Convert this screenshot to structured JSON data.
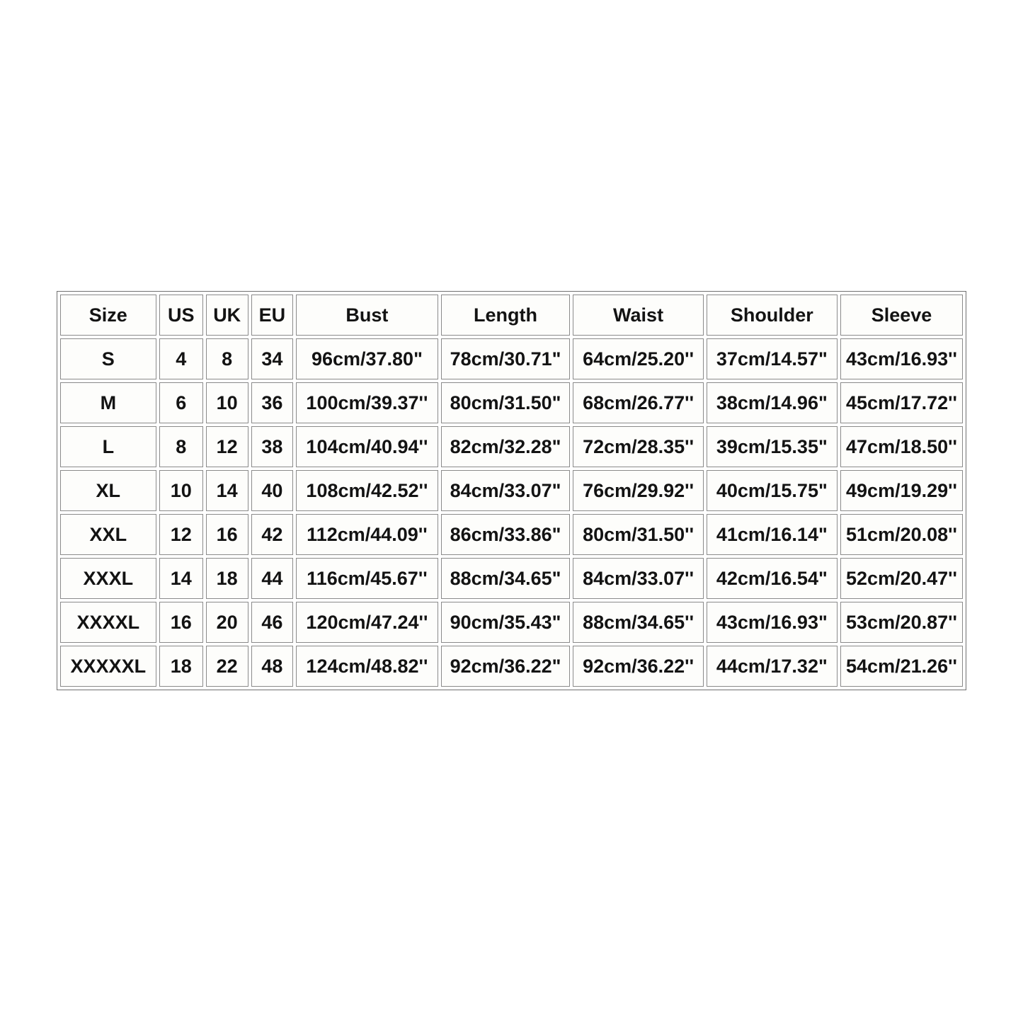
{
  "chart_data": {
    "type": "table",
    "columns": [
      "Size",
      "US",
      "UK",
      "EU",
      "Bust",
      "Length",
      "Waist",
      "Shoulder",
      "Sleeve"
    ],
    "rows": [
      [
        "S",
        "4",
        "8",
        "34",
        "96cm/37.80\"",
        "78cm/30.71\"",
        "64cm/25.20''",
        "37cm/14.57\"",
        "43cm/16.93''"
      ],
      [
        "M",
        "6",
        "10",
        "36",
        "100cm/39.37''",
        "80cm/31.50\"",
        "68cm/26.77''",
        "38cm/14.96\"",
        "45cm/17.72''"
      ],
      [
        "L",
        "8",
        "12",
        "38",
        "104cm/40.94''",
        "82cm/32.28\"",
        "72cm/28.35''",
        "39cm/15.35\"",
        "47cm/18.50''"
      ],
      [
        "XL",
        "10",
        "14",
        "40",
        "108cm/42.52''",
        "84cm/33.07\"",
        "76cm/29.92''",
        "40cm/15.75\"",
        "49cm/19.29''"
      ],
      [
        "XXL",
        "12",
        "16",
        "42",
        "112cm/44.09''",
        "86cm/33.86\"",
        "80cm/31.50''",
        "41cm/16.14\"",
        "51cm/20.08''"
      ],
      [
        "XXXL",
        "14",
        "18",
        "44",
        "116cm/45.67''",
        "88cm/34.65\"",
        "84cm/33.07''",
        "42cm/16.54\"",
        "52cm/20.47''"
      ],
      [
        "XXXXL",
        "16",
        "20",
        "46",
        "120cm/47.24''",
        "90cm/35.43\"",
        "88cm/34.65''",
        "43cm/16.93\"",
        "53cm/20.87''"
      ],
      [
        "XXXXXL",
        "18",
        "22",
        "48",
        "124cm/48.82''",
        "92cm/36.22\"",
        "92cm/36.22''",
        "44cm/17.32\"",
        "54cm/21.26''"
      ]
    ],
    "layout": {
      "column_width_percents": [
        10.9,
        5.0,
        4.8,
        4.8,
        16.1,
        14.7,
        14.8,
        14.9,
        13.9
      ],
      "grid": "on",
      "header_position": "top"
    }
  },
  "colors": {
    "page_background": "#ffffff",
    "cell_background": "#fdfdfb",
    "cell_border": "#8a8a8a",
    "outer_border": "#707070",
    "text": "#131313"
  }
}
